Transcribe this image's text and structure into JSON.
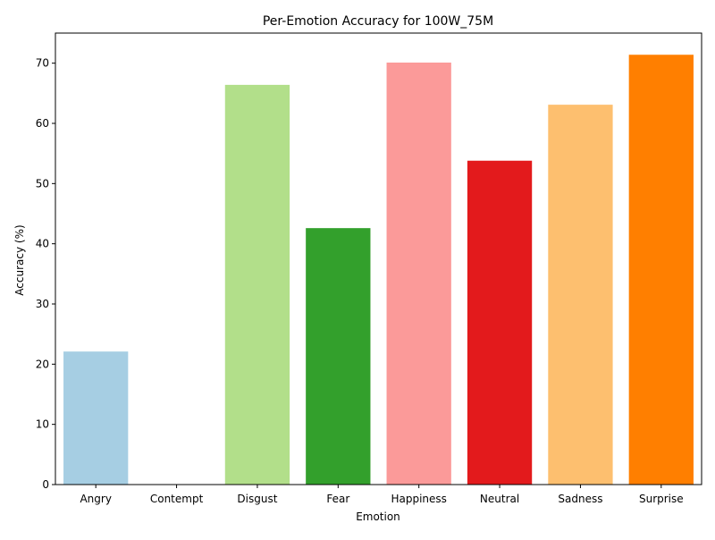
{
  "chart_data": {
    "type": "bar",
    "title": "Per-Emotion Accuracy for 100W_75M",
    "xlabel": "Emotion",
    "ylabel": "Accuracy (%)",
    "categories": [
      "Angry",
      "Contempt",
      "Disgust",
      "Fear",
      "Happiness",
      "Neutral",
      "Sadness",
      "Surprise"
    ],
    "values": [
      22.1,
      0.0,
      66.4,
      42.6,
      70.1,
      53.8,
      63.1,
      71.4
    ],
    "colors": [
      "#a6cee3",
      "#1f78b4",
      "#b2df8a",
      "#33a02c",
      "#fb9a99",
      "#e31a1c",
      "#fdbf6f",
      "#ff7f00"
    ],
    "ylim": [
      0,
      75
    ],
    "yticks": [
      0,
      10,
      20,
      30,
      40,
      50,
      60,
      70
    ],
    "grid": false,
    "legend": "none"
  }
}
